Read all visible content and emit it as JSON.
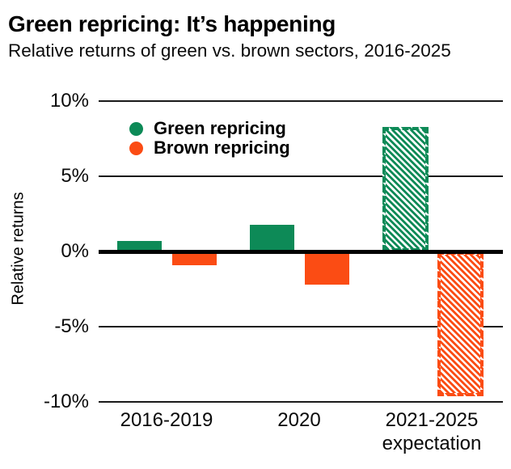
{
  "page": {
    "title": "Green repricing: It’s happening",
    "subtitle": "Relative returns of green vs. brown sectors, 2016-2025"
  },
  "chart_data": {
    "type": "bar",
    "title": "Green repricing: It’s happening",
    "subtitle": "Relative returns of green vs. brown sectors, 2016-2025",
    "xlabel": "",
    "ylabel": "Relative returns",
    "ylim": [
      -10,
      10
    ],
    "yticks": [
      {
        "value": 10,
        "label": "10%"
      },
      {
        "value": 5,
        "label": "5%"
      },
      {
        "value": 0,
        "label": "0%"
      },
      {
        "value": -5,
        "label": "-5%"
      },
      {
        "value": -10,
        "label": "-10%"
      }
    ],
    "categories": [
      {
        "label": "2016-2019",
        "sublabel": ""
      },
      {
        "label": "2020",
        "sublabel": ""
      },
      {
        "label": "2021-2025",
        "sublabel": "expectation"
      }
    ],
    "series": [
      {
        "name": "Green repricing",
        "color": "#0d8a57",
        "values": [
          0.7,
          1.8,
          8.3
        ],
        "bar_styles": [
          "solid",
          "solid",
          "hatched-dashed"
        ]
      },
      {
        "name": "Brown repricing",
        "color": "#fb4c14",
        "values": [
          -0.9,
          -2.2,
          -9.6
        ],
        "bar_styles": [
          "solid",
          "solid",
          "hatched-dashed"
        ]
      }
    ],
    "legend_position": "top-left-inside",
    "grid": "horizontal-only",
    "zero_line": true,
    "background": "#ffffff",
    "gridline_color": "#1a1a1a",
    "text_color": "#000000"
  }
}
